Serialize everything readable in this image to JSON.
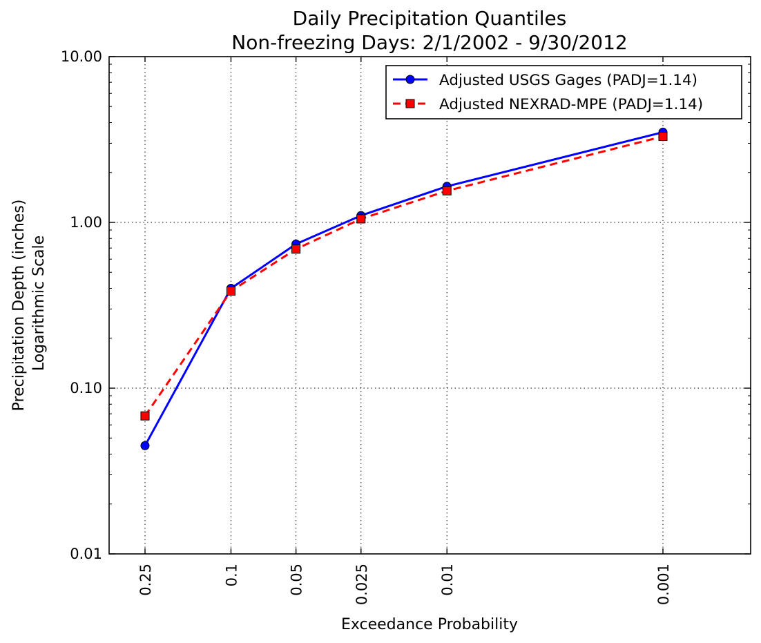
{
  "chart_data": {
    "type": "line",
    "title": "Daily Precipitation Quantiles",
    "subtitle": "Non-freezing Days: 2/1/2002 - 9/30/2012",
    "xlabel": "Exceedance Probability",
    "ylabel": "Precipitation Depth (inches)",
    "ylabel2": "Logarithmic Scale",
    "x_scale": "probability (reciprocal)",
    "y_scale": "log",
    "ylim": [
      0.01,
      10
    ],
    "x_ticks": [
      {
        "value": 0.25,
        "label": "0.25"
      },
      {
        "value": 0.1,
        "label": "0.1"
      },
      {
        "value": 0.05,
        "label": "0.05"
      },
      {
        "value": 0.025,
        "label": "0.025"
      },
      {
        "value": 0.01,
        "label": "0.01"
      },
      {
        "value": 0.001,
        "label": "0.001"
      }
    ],
    "y_ticks": [
      {
        "value": 0.01,
        "label": "0.01"
      },
      {
        "value": 0.1,
        "label": "0.10"
      },
      {
        "value": 1,
        "label": "1.00"
      },
      {
        "value": 10,
        "label": "10.00"
      }
    ],
    "x": [
      0.25,
      0.1,
      0.05,
      0.025,
      0.01,
      0.001
    ],
    "grid": true,
    "legend_position": "top-right",
    "series": [
      {
        "name": "Adjusted USGS Gages (PADJ=1.14)",
        "values": [
          0.045,
          0.4,
          0.74,
          1.1,
          1.65,
          3.5
        ],
        "color": "#0000ff",
        "line_style": "solid",
        "marker": "circle"
      },
      {
        "name": "Adjusted NEXRAD-MPE (PADJ=1.14)",
        "values": [
          0.068,
          0.385,
          0.69,
          1.05,
          1.55,
          3.3
        ],
        "color": "#ff0000",
        "line_style": "dashed",
        "marker": "square"
      }
    ]
  }
}
